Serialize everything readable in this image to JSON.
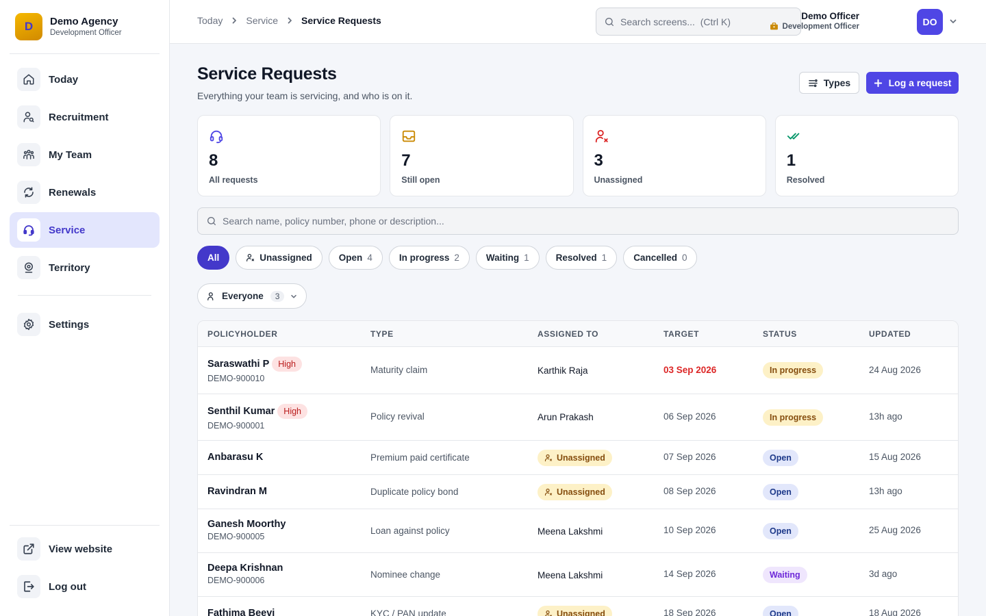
{
  "brand": {
    "initial": "D",
    "name": "Demo Agency",
    "role": "Development Officer"
  },
  "nav": {
    "items": [
      {
        "label": "Today",
        "icon": "home-icon"
      },
      {
        "label": "Recruitment",
        "icon": "user-search-icon"
      },
      {
        "label": "My Team",
        "icon": "team-icon"
      },
      {
        "label": "Renewals",
        "icon": "refresh-icon"
      },
      {
        "label": "Service",
        "icon": "headset-icon",
        "active": true
      },
      {
        "label": "Territory",
        "icon": "map-pin-icon"
      }
    ],
    "settings": "Settings",
    "view_website": "View website",
    "logout": "Log out"
  },
  "topbar": {
    "breadcrumb": [
      "Today",
      "Service",
      "Service Requests"
    ],
    "search_placeholder": "Search screens...  (Ctrl K)",
    "user_name": "Demo Officer",
    "user_role": "Development Officer",
    "avatar": "DO"
  },
  "page": {
    "title": "Service Requests",
    "subtitle": "Everything your team is servicing, and who is on it.",
    "types_button": "Types",
    "log_button": "Log a request"
  },
  "stats": [
    {
      "value": "8",
      "label": "All requests",
      "icon": "headset-icon",
      "color": "#4f46e5"
    },
    {
      "value": "7",
      "label": "Still open",
      "icon": "inbox-icon",
      "color": "#ca8a04"
    },
    {
      "value": "3",
      "label": "Unassigned",
      "icon": "user-x-icon",
      "color": "#dc2626"
    },
    {
      "value": "1",
      "label": "Resolved",
      "icon": "double-check-icon",
      "color": "#059669"
    }
  ],
  "filters": {
    "search_placeholder": "Search name, policy number, phone or description...",
    "chips": [
      {
        "label": "All",
        "active": true
      },
      {
        "label": "Unassigned",
        "icon": "user-icon"
      },
      {
        "label": "Open",
        "count": "4"
      },
      {
        "label": "In progress",
        "count": "2"
      },
      {
        "label": "Waiting",
        "count": "1"
      },
      {
        "label": "Resolved",
        "count": "1"
      },
      {
        "label": "Cancelled",
        "count": "0"
      }
    ],
    "owner": {
      "label": "Everyone",
      "count": "3"
    }
  },
  "table": {
    "columns": [
      "POLICYHOLDER",
      "TYPE",
      "ASSIGNED TO",
      "TARGET",
      "STATUS",
      "UPDATED"
    ],
    "rows": [
      {
        "name": "Saraswathi P",
        "priority": "High",
        "policy": "DEMO-900010",
        "type": "Maturity claim",
        "assigned": "Karthik Raja",
        "target": "03 Sep 2026",
        "overdue": true,
        "status": "In progress",
        "status_kind": "progress",
        "updated": "24 Aug 2026"
      },
      {
        "name": "Senthil Kumar",
        "priority": "High",
        "policy": "DEMO-900001",
        "type": "Policy revival",
        "assigned": "Arun Prakash",
        "target": "06 Sep 2026",
        "status": "In progress",
        "status_kind": "progress",
        "updated": "13h ago"
      },
      {
        "name": "Anbarasu K",
        "type": "Premium paid certificate",
        "assigned": "Unassigned",
        "unassigned": true,
        "target": "07 Sep 2026",
        "status": "Open",
        "status_kind": "open",
        "updated": "15 Aug 2026"
      },
      {
        "name": "Ravindran M",
        "type": "Duplicate policy bond",
        "assigned": "Unassigned",
        "unassigned": true,
        "target": "08 Sep 2026",
        "status": "Open",
        "status_kind": "open",
        "updated": "13h ago"
      },
      {
        "name": "Ganesh Moorthy",
        "policy": "DEMO-900005",
        "type": "Loan against policy",
        "assigned": "Meena Lakshmi",
        "target": "10 Sep 2026",
        "status": "Open",
        "status_kind": "open",
        "updated": "25 Aug 2026"
      },
      {
        "name": "Deepa Krishnan",
        "policy": "DEMO-900006",
        "type": "Nominee change",
        "assigned": "Meena Lakshmi",
        "target": "14 Sep 2026",
        "status": "Waiting",
        "status_kind": "waiting",
        "updated": "3d ago"
      },
      {
        "name": "Fathima Beevi",
        "type": "KYC / PAN update",
        "assigned": "Unassigned",
        "unassigned": true,
        "target": "18 Sep 2026",
        "status": "Open",
        "status_kind": "open",
        "updated": "18 Aug 2026"
      }
    ]
  }
}
